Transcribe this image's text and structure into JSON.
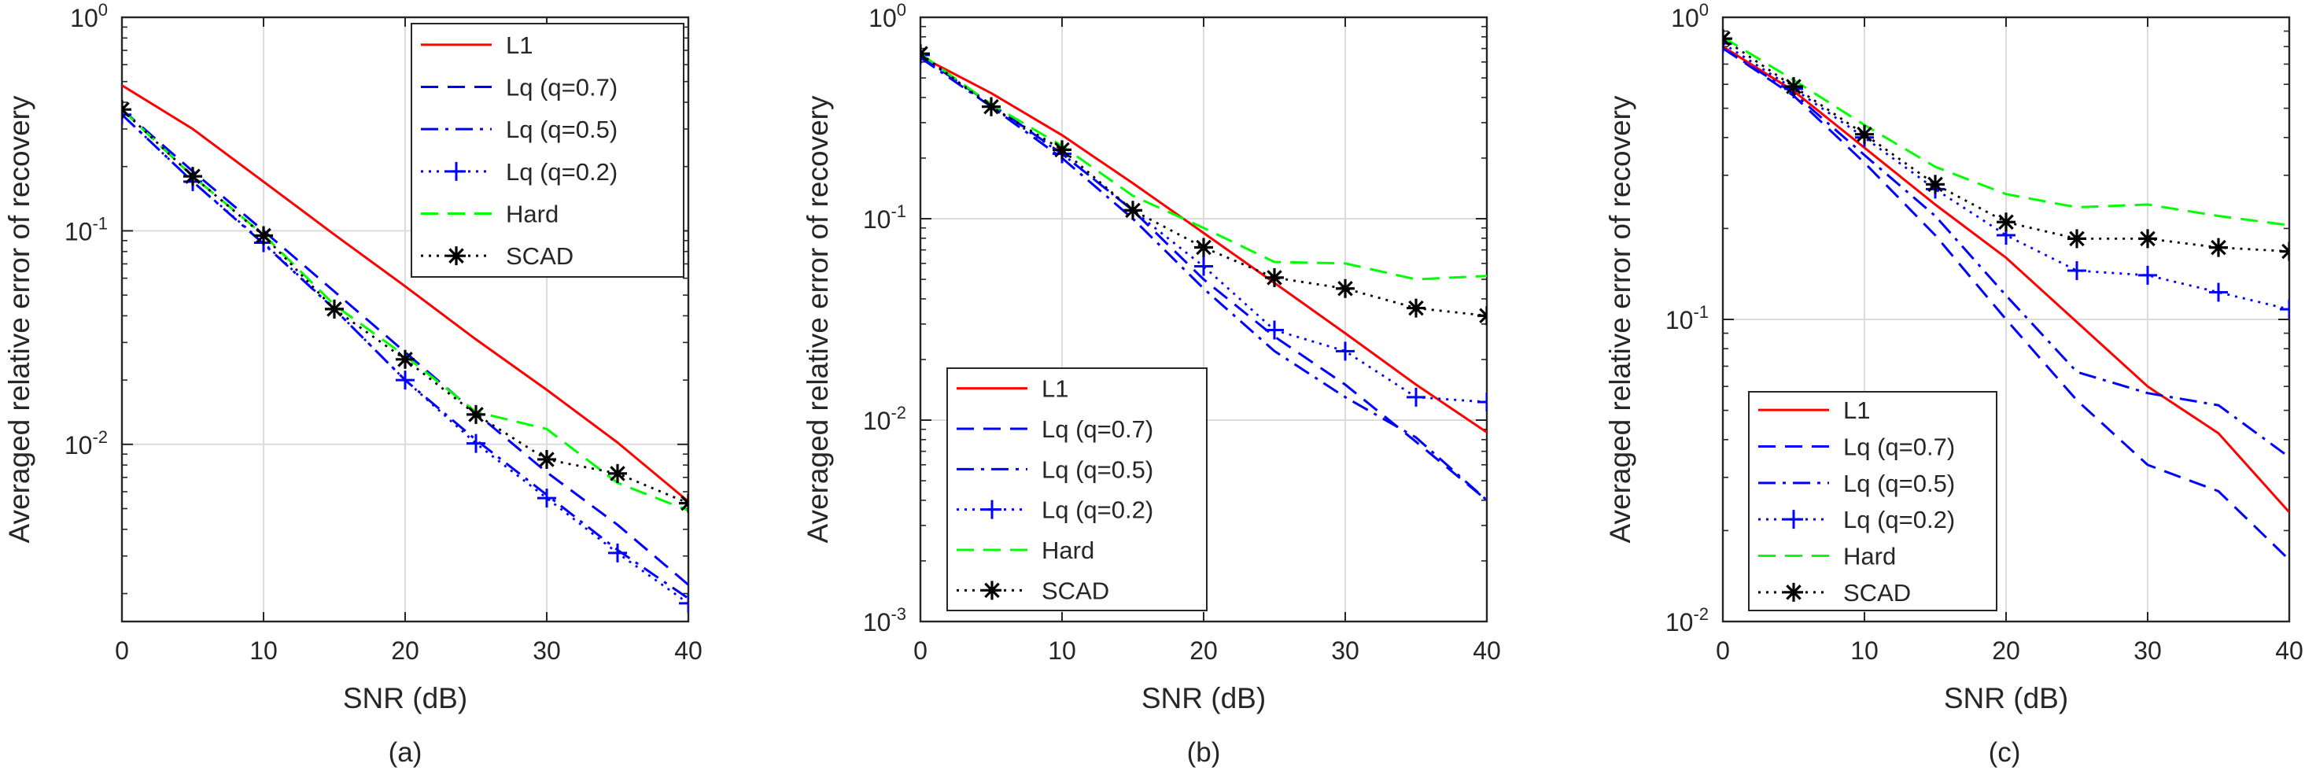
{
  "figure": {
    "panel_labels": [
      "(a)",
      "(b)",
      "(c)"
    ]
  },
  "colors": {
    "L1": "#ff0000",
    "Lq07": "#0000ff",
    "Lq05": "#0000ff",
    "Lq02": "#0000ff",
    "Hard": "#00ff00",
    "SCAD": "#000000",
    "grid": "#dcdcdc",
    "axis": "#262626"
  },
  "chart_data": [
    {
      "type": "line",
      "panel": "(a)",
      "xlabel": "SNR (dB)",
      "ylabel": "Averaged relative error of recovery",
      "xlim": [
        0,
        40
      ],
      "ylim": [
        0.00148,
        1
      ],
      "yscale": "log",
      "grid": true,
      "legend_position": "top-right",
      "x_ticks": [
        0,
        10,
        20,
        30,
        40
      ],
      "y_ticks": [
        {
          "value": 1,
          "label_base": "10",
          "label_exp": "0"
        },
        {
          "value": 0.1,
          "label_base": "10",
          "label_exp": "-1"
        },
        {
          "value": 0.01,
          "label_base": "10",
          "label_exp": "-2"
        }
      ],
      "x": [
        0,
        5,
        10,
        15,
        20,
        25,
        30,
        35,
        40
      ],
      "series": [
        {
          "name": "L1",
          "style": "solid",
          "marker": "none",
          "color_key": "L1",
          "values": [
            0.48,
            0.3,
            0.17,
            0.096,
            0.055,
            0.031,
            0.018,
            0.0102,
            0.0054
          ]
        },
        {
          "name": "Lq (q=0.7)",
          "style": "dashed",
          "marker": "none",
          "color_key": "Lq07",
          "values": [
            0.37,
            0.19,
            0.1,
            0.052,
            0.027,
            0.014,
            0.0074,
            0.0042,
            0.0022
          ]
        },
        {
          "name": "Lq (q=0.5)",
          "style": "dashdot",
          "marker": "none",
          "color_key": "Lq05",
          "values": [
            0.35,
            0.17,
            0.087,
            0.043,
            0.02,
            0.0105,
            0.0058,
            0.0032,
            0.0019
          ]
        },
        {
          "name": "Lq (q=0.2)",
          "style": "dotted",
          "marker": "plus",
          "color_key": "Lq02",
          "values": [
            0.35,
            0.17,
            0.088,
            0.043,
            0.02,
            0.0101,
            0.0056,
            0.0031,
            0.0018
          ]
        },
        {
          "name": "Hard",
          "style": "dashed",
          "marker": "none",
          "color_key": "Hard",
          "values": [
            0.37,
            0.18,
            0.096,
            0.045,
            0.026,
            0.0142,
            0.0118,
            0.0066,
            0.0049
          ]
        },
        {
          "name": "SCAD",
          "style": "dotted",
          "marker": "asterisk",
          "color_key": "SCAD",
          "values": [
            0.37,
            0.18,
            0.095,
            0.043,
            0.025,
            0.0138,
            0.0085,
            0.0073,
            0.0053
          ]
        }
      ]
    },
    {
      "type": "line",
      "panel": "(b)",
      "xlabel": "SNR (dB)",
      "ylabel": "Averaged relative error of recovery",
      "xlim": [
        0,
        40
      ],
      "ylim": [
        0.001,
        1
      ],
      "yscale": "log",
      "grid": true,
      "legend_position": "bottom-left",
      "x_ticks": [
        0,
        10,
        20,
        30,
        40
      ],
      "y_ticks": [
        {
          "value": 1,
          "label_base": "10",
          "label_exp": "0"
        },
        {
          "value": 0.1,
          "label_base": "10",
          "label_exp": "-1"
        },
        {
          "value": 0.01,
          "label_base": "10",
          "label_exp": "-2"
        },
        {
          "value": 0.001,
          "label_base": "10",
          "label_exp": "-3"
        }
      ],
      "x": [
        0,
        5,
        10,
        15,
        20,
        25,
        30,
        35,
        40
      ],
      "series": [
        {
          "name": "L1",
          "style": "solid",
          "marker": "none",
          "color_key": "L1",
          "values": [
            0.64,
            0.42,
            0.26,
            0.15,
            0.085,
            0.048,
            0.027,
            0.015,
            0.0087
          ]
        },
        {
          "name": "Lq (q=0.7)",
          "style": "dashed",
          "marker": "none",
          "color_key": "Lq07",
          "values": [
            0.64,
            0.37,
            0.21,
            0.11,
            0.05,
            0.026,
            0.015,
            0.0078,
            0.004
          ]
        },
        {
          "name": "Lq (q=0.5)",
          "style": "dashdot",
          "marker": "none",
          "color_key": "Lq05",
          "values": [
            0.63,
            0.36,
            0.2,
            0.1,
            0.045,
            0.022,
            0.013,
            0.0082,
            0.004
          ]
        },
        {
          "name": "Lq (q=0.2)",
          "style": "dotted",
          "marker": "plus",
          "color_key": "Lq02",
          "values": [
            0.65,
            0.36,
            0.21,
            0.11,
            0.058,
            0.028,
            0.022,
            0.013,
            0.0123
          ]
        },
        {
          "name": "Hard",
          "style": "dashed",
          "marker": "none",
          "color_key": "Hard",
          "values": [
            0.66,
            0.37,
            0.23,
            0.13,
            0.09,
            0.061,
            0.06,
            0.05,
            0.052
          ]
        },
        {
          "name": "SCAD",
          "style": "dotted",
          "marker": "asterisk",
          "color_key": "SCAD",
          "values": [
            0.66,
            0.36,
            0.22,
            0.11,
            0.072,
            0.051,
            0.045,
            0.036,
            0.033
          ]
        }
      ]
    },
    {
      "type": "line",
      "panel": "(c)",
      "xlabel": "SNR (dB)",
      "ylabel": "Averaged relative error of recovery",
      "xlim": [
        0,
        40
      ],
      "ylim": [
        0.01,
        1
      ],
      "yscale": "log",
      "grid": true,
      "legend_position": "bottom-left",
      "x_ticks": [
        0,
        10,
        20,
        30,
        40
      ],
      "y_ticks": [
        {
          "value": 1,
          "label_base": "10",
          "label_exp": "0"
        },
        {
          "value": 0.1,
          "label_base": "10",
          "label_exp": "-1"
        },
        {
          "value": 0.01,
          "label_base": "10",
          "label_exp": "-2"
        }
      ],
      "x": [
        0,
        5,
        10,
        15,
        20,
        25,
        30,
        35,
        40
      ],
      "series": [
        {
          "name": "L1",
          "style": "solid",
          "marker": "none",
          "color_key": "L1",
          "values": [
            0.8,
            0.57,
            0.37,
            0.24,
            0.16,
            0.098,
            0.06,
            0.042,
            0.023
          ]
        },
        {
          "name": "Lq (q=0.7)",
          "style": "dashed",
          "marker": "none",
          "color_key": "Lq07",
          "values": [
            0.79,
            0.55,
            0.33,
            0.19,
            0.1,
            0.054,
            0.033,
            0.027,
            0.016
          ]
        },
        {
          "name": "Lq (q=0.5)",
          "style": "dashdot",
          "marker": "none",
          "color_key": "Lq05",
          "values": [
            0.79,
            0.56,
            0.35,
            0.22,
            0.12,
            0.067,
            0.057,
            0.052,
            0.035
          ]
        },
        {
          "name": "Lq (q=0.2)",
          "style": "dotted",
          "marker": "plus",
          "color_key": "Lq02",
          "values": [
            0.82,
            0.58,
            0.4,
            0.27,
            0.19,
            0.145,
            0.14,
            0.123,
            0.108
          ]
        },
        {
          "name": "Hard",
          "style": "dashed",
          "marker": "none",
          "color_key": "Hard",
          "values": [
            0.86,
            0.62,
            0.44,
            0.32,
            0.26,
            0.235,
            0.24,
            0.22,
            0.205
          ]
        },
        {
          "name": "SCAD",
          "style": "dotted",
          "marker": "asterisk",
          "color_key": "SCAD",
          "values": [
            0.85,
            0.59,
            0.41,
            0.28,
            0.21,
            0.185,
            0.185,
            0.173,
            0.168
          ]
        }
      ]
    }
  ]
}
